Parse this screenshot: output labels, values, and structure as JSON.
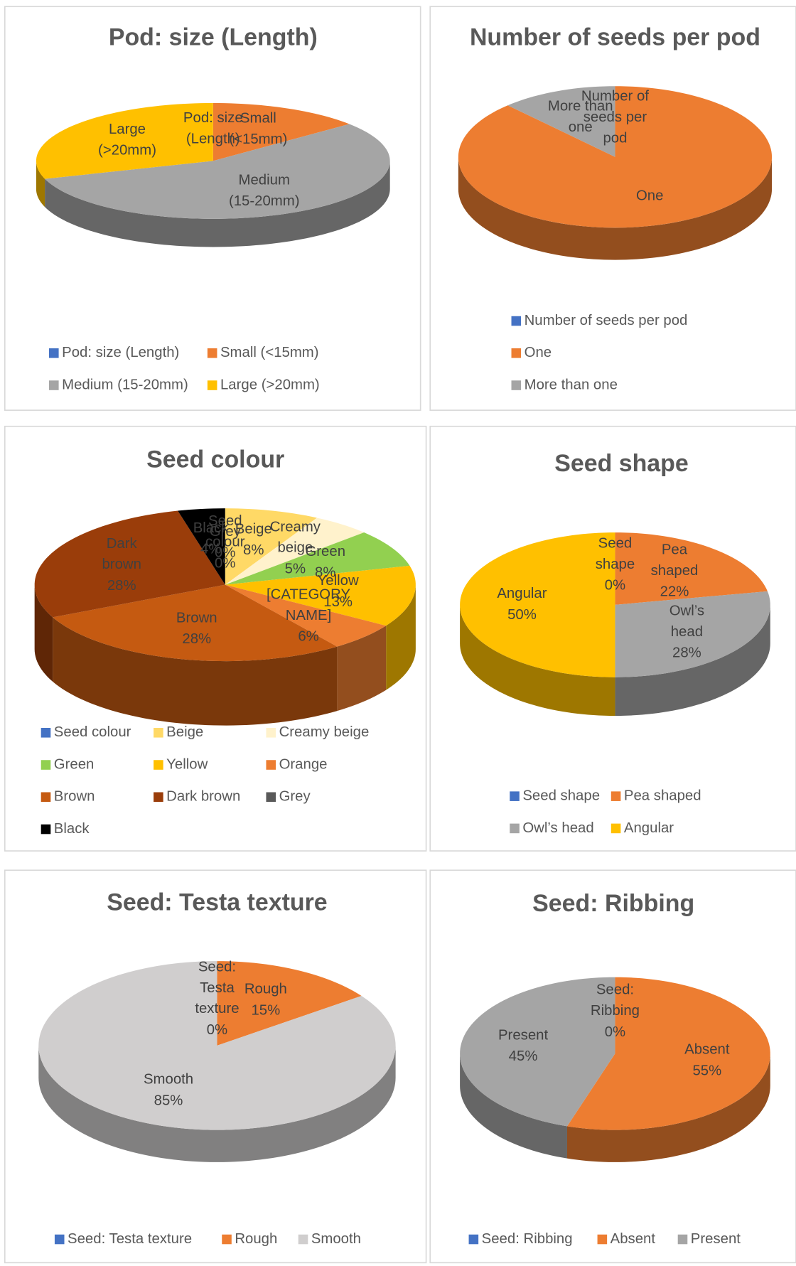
{
  "chart_data": [
    {
      "type": "pie",
      "title": "Pod: size (Length)",
      "categories": [
        "Pod: size (Length)",
        "Small (<15mm)",
        "Medium (15-20mm)",
        "Large (>20mm)"
      ],
      "values": [
        0,
        14,
        56,
        30
      ],
      "colors": [
        "#4472c4",
        "#ed7d31",
        "#a5a5a5",
        "#ffc000"
      ]
    },
    {
      "type": "pie",
      "title": "Number of seeds per pod",
      "categories": [
        "Number of seeds per pod",
        "One",
        "More than one"
      ],
      "values": [
        0,
        88,
        12
      ],
      "colors": [
        "#4472c4",
        "#ed7d31",
        "#a5a5a5"
      ]
    },
    {
      "type": "pie",
      "title": "Seed colour",
      "categories": [
        "Seed colour",
        "Beige",
        "Creamy beige",
        "Green",
        "Yellow",
        "Orange",
        "Brown",
        "Dark brown",
        "Grey",
        "Black"
      ],
      "label_names": [
        "Seed colour",
        "Beige",
        "Creamy beige",
        "Green",
        "Yellow",
        "[CATEGORY NAME]",
        "Brown",
        "Dark brown",
        "Grey",
        "Black"
      ],
      "values": [
        0,
        8,
        5,
        8,
        13,
        6,
        28,
        28,
        0,
        4
      ],
      "value_labels": [
        "0%",
        "8%",
        "5%",
        "8%",
        "13%",
        "6%",
        "28%",
        "28%",
        "0%",
        "4%"
      ],
      "colors": [
        "#4472c4",
        "#ffd966",
        "#fff2cc",
        "#92d050",
        "#ffc000",
        "#ed7d31",
        "#c55a11",
        "#9a3d0a",
        "#595959",
        "#000000"
      ]
    },
    {
      "type": "pie",
      "title": "Seed shape",
      "categories": [
        "Seed shape",
        "Pea shaped",
        "Owl’s head",
        "Angular"
      ],
      "values": [
        0,
        22,
        28,
        50
      ],
      "value_labels": [
        "0%",
        "22%",
        "28%",
        "50%"
      ],
      "colors": [
        "#4472c4",
        "#ed7d31",
        "#a5a5a5",
        "#ffc000"
      ]
    },
    {
      "type": "pie",
      "title": "Seed: Testa texture",
      "categories": [
        "Seed: Testa texture",
        "Rough",
        "Smooth"
      ],
      "values": [
        0,
        15,
        85
      ],
      "value_labels": [
        "0%",
        "15%",
        "85%"
      ],
      "colors": [
        "#4472c4",
        "#ed7d31",
        "#d0cece"
      ]
    },
    {
      "type": "pie",
      "title": "Seed: Ribbing",
      "categories": [
        "Seed: Ribbing",
        "Absent",
        "Present"
      ],
      "values": [
        0,
        55,
        45
      ],
      "value_labels": [
        "0%",
        "55%",
        "45%"
      ],
      "colors": [
        "#4472c4",
        "#ed7d31",
        "#a5a5a5"
      ]
    }
  ]
}
